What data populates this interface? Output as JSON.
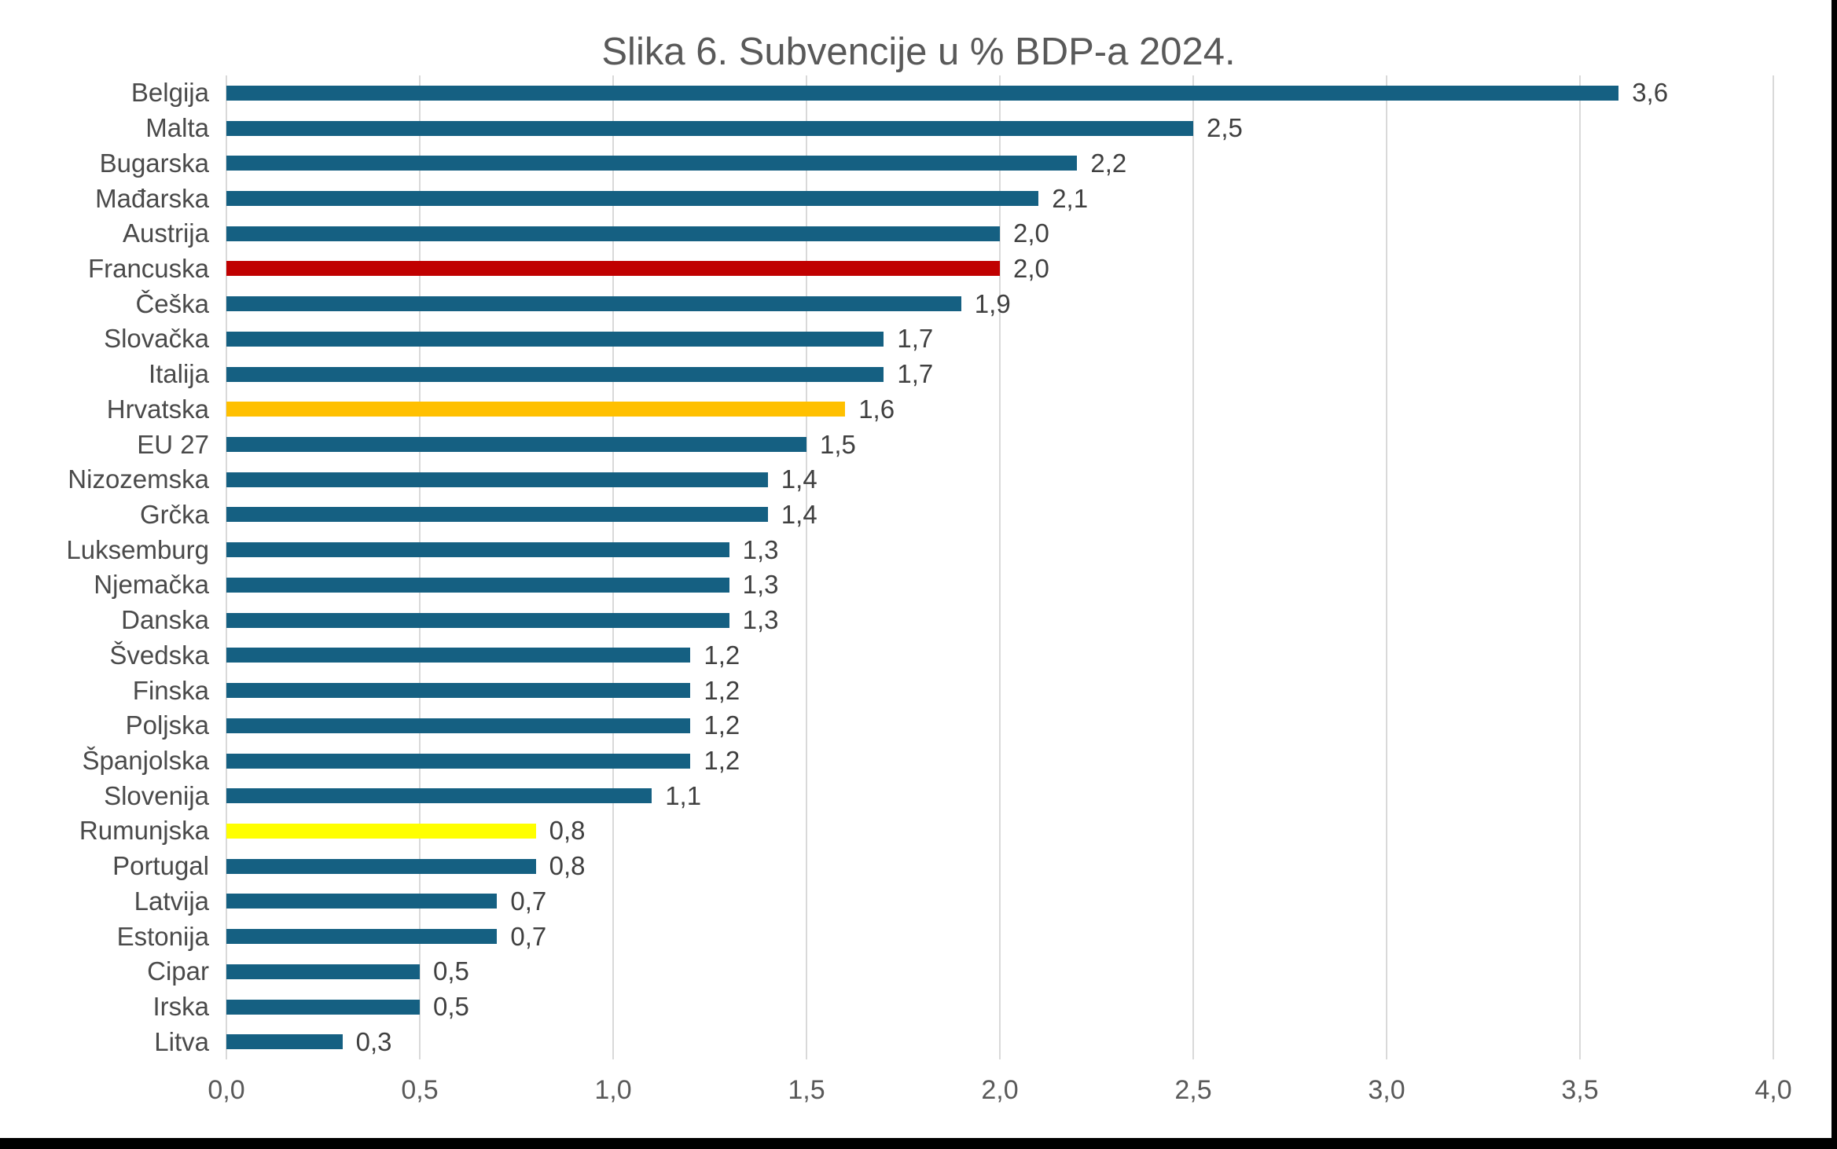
{
  "title": "Slika 6. Subvencije u % BDP-a 2024.",
  "chart_data": {
    "type": "bar",
    "orientation": "horizontal",
    "title": "Slika 6. Subvencije u % BDP-a 2024.",
    "xlabel": "",
    "ylabel": "",
    "xlim": [
      0.0,
      4.0
    ],
    "grid": true,
    "gridline_color": "#d9d9d9",
    "default_bar_color": "#156082",
    "x_ticks": [
      {
        "value": 0.0,
        "label": "0,0"
      },
      {
        "value": 0.5,
        "label": "0,5"
      },
      {
        "value": 1.0,
        "label": "1,0"
      },
      {
        "value": 1.5,
        "label": "1,5"
      },
      {
        "value": 2.0,
        "label": "2,0"
      },
      {
        "value": 2.5,
        "label": "2,5"
      },
      {
        "value": 3.0,
        "label": "3,0"
      },
      {
        "value": 3.5,
        "label": "3,5"
      },
      {
        "value": 4.0,
        "label": "4,0"
      }
    ],
    "bars": [
      {
        "category": "Belgija",
        "value": 3.6,
        "display": "3,6",
        "color": "#156082"
      },
      {
        "category": "Malta",
        "value": 2.5,
        "display": "2,5",
        "color": "#156082"
      },
      {
        "category": "Bugarska",
        "value": 2.2,
        "display": "2,2",
        "color": "#156082"
      },
      {
        "category": "Mađarska",
        "value": 2.1,
        "display": "2,1",
        "color": "#156082"
      },
      {
        "category": "Austrija",
        "value": 2.0,
        "display": "2,0",
        "color": "#156082"
      },
      {
        "category": "Francuska",
        "value": 2.0,
        "display": "2,0",
        "color": "#c00000"
      },
      {
        "category": "Češka",
        "value": 1.9,
        "display": "1,9",
        "color": "#156082"
      },
      {
        "category": "Slovačka",
        "value": 1.7,
        "display": "1,7",
        "color": "#156082"
      },
      {
        "category": "Italija",
        "value": 1.7,
        "display": "1,7",
        "color": "#156082"
      },
      {
        "category": "Hrvatska",
        "value": 1.6,
        "display": "1,6",
        "color": "#ffc000"
      },
      {
        "category": "EU 27",
        "value": 1.5,
        "display": "1,5",
        "color": "#156082"
      },
      {
        "category": "Nizozemska",
        "value": 1.4,
        "display": "1,4",
        "color": "#156082"
      },
      {
        "category": "Grčka",
        "value": 1.4,
        "display": "1,4",
        "color": "#156082"
      },
      {
        "category": "Luksemburg",
        "value": 1.3,
        "display": "1,3",
        "color": "#156082"
      },
      {
        "category": "Njemačka",
        "value": 1.3,
        "display": "1,3",
        "color": "#156082"
      },
      {
        "category": "Danska",
        "value": 1.3,
        "display": "1,3",
        "color": "#156082"
      },
      {
        "category": "Švedska",
        "value": 1.2,
        "display": "1,2",
        "color": "#156082"
      },
      {
        "category": "Finska",
        "value": 1.2,
        "display": "1,2",
        "color": "#156082"
      },
      {
        "category": "Poljska",
        "value": 1.2,
        "display": "1,2",
        "color": "#156082"
      },
      {
        "category": "Španjolska",
        "value": 1.2,
        "display": "1,2",
        "color": "#156082"
      },
      {
        "category": "Slovenija",
        "value": 1.1,
        "display": "1,1",
        "color": "#156082"
      },
      {
        "category": "Rumunjska",
        "value": 0.8,
        "display": "0,8",
        "color": "#ffff00"
      },
      {
        "category": "Portugal",
        "value": 0.8,
        "display": "0,8",
        "color": "#156082"
      },
      {
        "category": "Latvija",
        "value": 0.7,
        "display": "0,7",
        "color": "#156082"
      },
      {
        "category": "Estonija",
        "value": 0.7,
        "display": "0,7",
        "color": "#156082"
      },
      {
        "category": "Cipar",
        "value": 0.5,
        "display": "0,5",
        "color": "#156082"
      },
      {
        "category": "Irska",
        "value": 0.5,
        "display": "0,5",
        "color": "#156082"
      },
      {
        "category": "Litva",
        "value": 0.3,
        "display": "0,3",
        "color": "#156082"
      }
    ],
    "highlight_colors": {
      "Francuska": "#c00000",
      "Hrvatska": "#ffc000",
      "Rumunjska": "#ffff00"
    }
  }
}
